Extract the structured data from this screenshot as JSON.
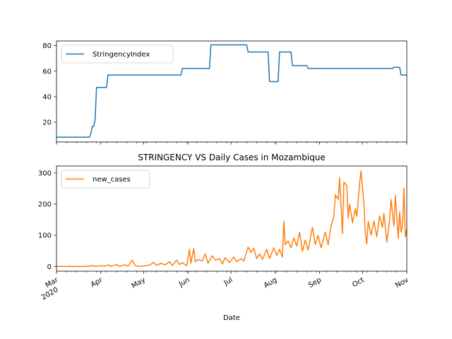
{
  "chart_data": [
    {
      "type": "line",
      "title": "",
      "xlabel": "",
      "ylabel": "",
      "x_range": [
        "2020-03-01",
        "2020-11-01"
      ],
      "ylim": [
        4.6,
        83.6
      ],
      "y_ticks": [
        20,
        40,
        60,
        80
      ],
      "grid": false,
      "legend": "upper-left",
      "series": [
        {
          "name": "StringencyIndex",
          "color": "#1f77b4",
          "points": [
            [
              "2020-03-01",
              8.33
            ],
            [
              "2020-03-24",
              8.33
            ],
            [
              "2020-03-25",
              11.1
            ],
            [
              "2020-03-26",
              16.67
            ],
            [
              "2020-03-27",
              16.67
            ],
            [
              "2020-03-28",
              22.2
            ],
            [
              "2020-03-29",
              47.22
            ],
            [
              "2020-04-05",
              47.22
            ],
            [
              "2020-04-06",
              56.94
            ],
            [
              "2020-05-27",
              56.94
            ],
            [
              "2020-05-28",
              62.04
            ],
            [
              "2020-06-16",
              62.04
            ],
            [
              "2020-06-17",
              80.56
            ],
            [
              "2020-07-12",
              80.56
            ],
            [
              "2020-07-13",
              75.0
            ],
            [
              "2020-07-27",
              75.0
            ],
            [
              "2020-07-28",
              51.85
            ],
            [
              "2020-08-03",
              51.85
            ],
            [
              "2020-08-04",
              75.0
            ],
            [
              "2020-08-12",
              75.0
            ],
            [
              "2020-08-13",
              64.35
            ],
            [
              "2020-08-23",
              64.35
            ],
            [
              "2020-08-24",
              62.04
            ],
            [
              "2020-10-22",
              62.04
            ],
            [
              "2020-10-23",
              63.0
            ],
            [
              "2020-10-27",
              63.0
            ],
            [
              "2020-10-28",
              56.94
            ],
            [
              "2020-11-01",
              56.94
            ]
          ]
        }
      ]
    },
    {
      "type": "line",
      "title": "STRINGENCY VS Daily Cases in Mozambique",
      "xlabel": "Date",
      "ylabel": "",
      "x_range": [
        "2020-03-01",
        "2020-11-01"
      ],
      "ylim": [
        -15.4,
        322.4
      ],
      "y_ticks": [
        0,
        100,
        200,
        300
      ],
      "x_ticks": [
        {
          "date": "2020-03-01",
          "label": "Mar",
          "sub": "2020"
        },
        {
          "date": "2020-04-01",
          "label": "Apr"
        },
        {
          "date": "2020-05-01",
          "label": "May"
        },
        {
          "date": "2020-06-01",
          "label": "Jun"
        },
        {
          "date": "2020-07-01",
          "label": "Jul"
        },
        {
          "date": "2020-08-01",
          "label": "Aug"
        },
        {
          "date": "2020-09-01",
          "label": "Sep"
        },
        {
          "date": "2020-10-01",
          "label": "Oct"
        },
        {
          "date": "2020-11-01",
          "label": "Nov"
        }
      ],
      "grid": false,
      "legend": "upper-left",
      "series": [
        {
          "name": "new_cases",
          "color": "#ff7f0e",
          "points": [
            [
              "2020-03-01",
              0
            ],
            [
              "2020-03-21",
              0
            ],
            [
              "2020-03-22",
              1
            ],
            [
              "2020-03-24",
              0
            ],
            [
              "2020-03-26",
              3
            ],
            [
              "2020-03-28",
              0
            ],
            [
              "2020-03-31",
              2
            ],
            [
              "2020-04-04",
              1
            ],
            [
              "2020-04-06",
              5
            ],
            [
              "2020-04-08",
              0
            ],
            [
              "2020-04-12",
              6
            ],
            [
              "2020-04-14",
              0
            ],
            [
              "2020-04-18",
              5
            ],
            [
              "2020-04-20",
              1
            ],
            [
              "2020-04-23",
              20
            ],
            [
              "2020-04-25",
              2
            ],
            [
              "2020-04-28",
              0
            ],
            [
              "2020-05-05",
              4
            ],
            [
              "2020-05-08",
              13
            ],
            [
              "2020-05-10",
              3
            ],
            [
              "2020-05-13",
              10
            ],
            [
              "2020-05-16",
              5
            ],
            [
              "2020-05-19",
              15
            ],
            [
              "2020-05-21",
              3
            ],
            [
              "2020-05-24",
              20
            ],
            [
              "2020-05-26",
              6
            ],
            [
              "2020-05-28",
              12
            ],
            [
              "2020-05-31",
              2
            ],
            [
              "2020-06-02",
              55
            ],
            [
              "2020-06-03",
              10
            ],
            [
              "2020-06-05",
              57
            ],
            [
              "2020-06-06",
              15
            ],
            [
              "2020-06-08",
              22
            ],
            [
              "2020-06-11",
              18
            ],
            [
              "2020-06-13",
              40
            ],
            [
              "2020-06-15",
              10
            ],
            [
              "2020-06-18",
              34
            ],
            [
              "2020-06-20",
              20
            ],
            [
              "2020-06-23",
              25
            ],
            [
              "2020-06-25",
              8
            ],
            [
              "2020-06-27",
              28
            ],
            [
              "2020-06-30",
              12
            ],
            [
              "2020-07-03",
              30
            ],
            [
              "2020-07-05",
              15
            ],
            [
              "2020-07-08",
              25
            ],
            [
              "2020-07-10",
              17
            ],
            [
              "2020-07-13",
              62
            ],
            [
              "2020-07-15",
              45
            ],
            [
              "2020-07-17",
              58
            ],
            [
              "2020-07-19",
              25
            ],
            [
              "2020-07-21",
              40
            ],
            [
              "2020-07-23",
              22
            ],
            [
              "2020-07-26",
              55
            ],
            [
              "2020-07-28",
              25
            ],
            [
              "2020-07-31",
              60
            ],
            [
              "2020-08-02",
              35
            ],
            [
              "2020-08-04",
              55
            ],
            [
              "2020-08-06",
              30
            ],
            [
              "2020-08-07",
              145
            ],
            [
              "2020-08-08",
              70
            ],
            [
              "2020-08-10",
              82
            ],
            [
              "2020-08-12",
              60
            ],
            [
              "2020-08-14",
              92
            ],
            [
              "2020-08-16",
              65
            ],
            [
              "2020-08-18",
              110
            ],
            [
              "2020-08-20",
              48
            ],
            [
              "2020-08-22",
              85
            ],
            [
              "2020-08-24",
              52
            ],
            [
              "2020-08-27",
              125
            ],
            [
              "2020-08-29",
              70
            ],
            [
              "2020-08-31",
              100
            ],
            [
              "2020-09-02",
              60
            ],
            [
              "2020-09-05",
              110
            ],
            [
              "2020-09-07",
              70
            ],
            [
              "2020-09-09",
              130
            ],
            [
              "2020-09-11",
              160
            ],
            [
              "2020-09-12",
              230
            ],
            [
              "2020-09-14",
              215
            ],
            [
              "2020-09-15",
              285
            ],
            [
              "2020-09-17",
              105
            ],
            [
              "2020-09-18",
              270
            ],
            [
              "2020-09-20",
              260
            ],
            [
              "2020-09-21",
              155
            ],
            [
              "2020-09-22",
              200
            ],
            [
              "2020-09-24",
              140
            ],
            [
              "2020-09-26",
              185
            ],
            [
              "2020-09-27",
              160
            ],
            [
              "2020-09-29",
              265
            ],
            [
              "2020-09-30",
              307
            ],
            [
              "2020-10-02",
              200
            ],
            [
              "2020-10-03",
              110
            ],
            [
              "2020-10-04",
              72
            ],
            [
              "2020-10-05",
              145
            ],
            [
              "2020-10-07",
              100
            ],
            [
              "2020-10-09",
              145
            ],
            [
              "2020-10-11",
              95
            ],
            [
              "2020-10-13",
              162
            ],
            [
              "2020-10-15",
              125
            ],
            [
              "2020-10-16",
              170
            ],
            [
              "2020-10-18",
              78
            ],
            [
              "2020-10-20",
              150
            ],
            [
              "2020-10-21",
              215
            ],
            [
              "2020-10-23",
              130
            ],
            [
              "2020-10-24",
              228
            ],
            [
              "2020-10-26",
              90
            ],
            [
              "2020-10-27",
              175
            ],
            [
              "2020-10-28",
              110
            ],
            [
              "2020-10-29",
              130
            ],
            [
              "2020-10-30",
              252
            ],
            [
              "2020-10-31",
              95
            ],
            [
              "2020-11-01",
              120
            ]
          ]
        }
      ]
    }
  ]
}
